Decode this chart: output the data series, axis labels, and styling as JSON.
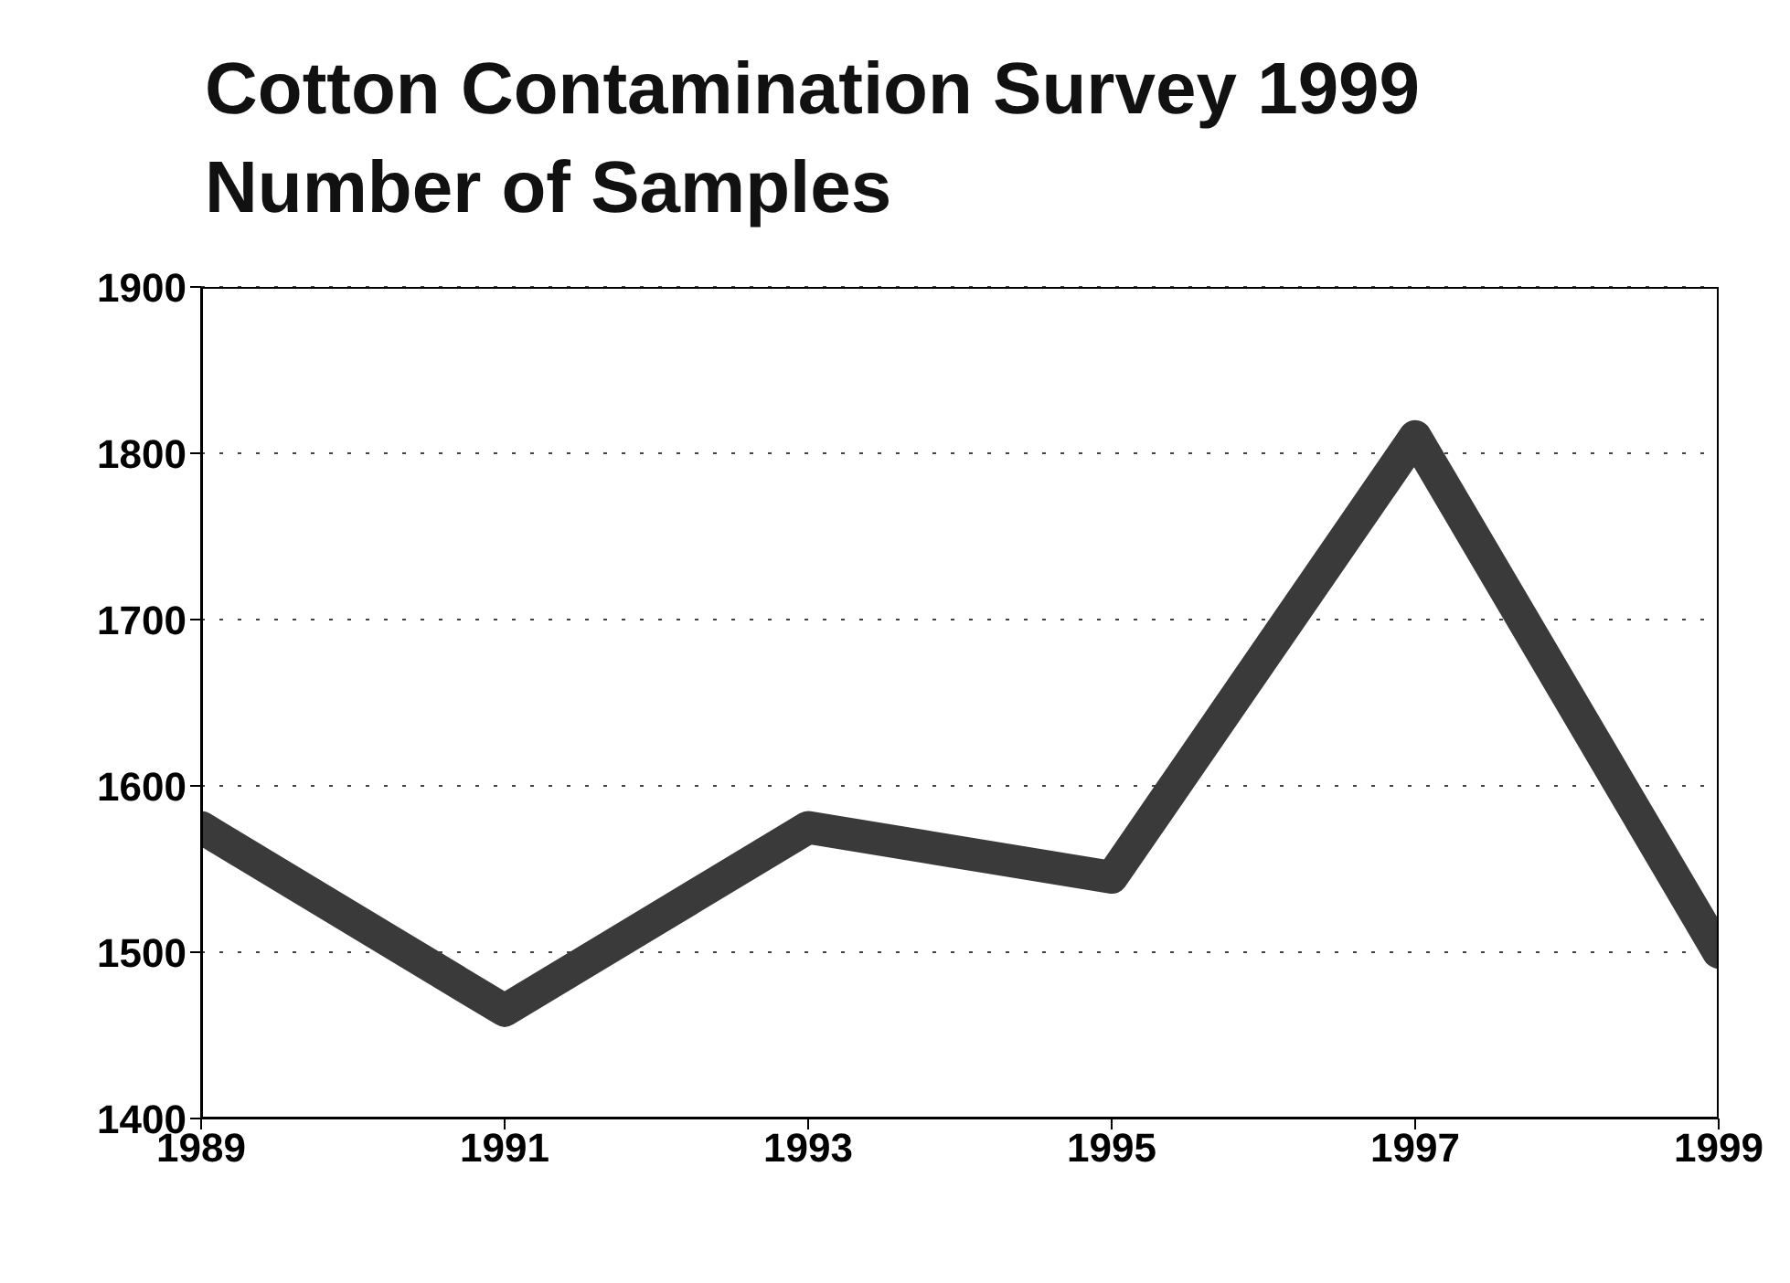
{
  "chart_data": {
    "type": "line",
    "title": "Cotton Contamination Survey 1999\nNumber of Samples",
    "x": [
      1989,
      1991,
      1993,
      1995,
      1997,
      1999
    ],
    "series": [
      {
        "color": "#3a3a3a",
        "values": [
          1575,
          1465,
          1575,
          1545,
          1810,
          1500
        ]
      }
    ],
    "xlim": [
      1989,
      1999
    ],
    "xticks": [
      1989,
      1991,
      1993,
      1995,
      1997,
      1999
    ],
    "ylim": [
      1400,
      1900
    ],
    "yticks": [
      1400,
      1500,
      1600,
      1700,
      1800,
      1900
    ],
    "grid": "y",
    "marker": "none",
    "line_style": "solid"
  }
}
